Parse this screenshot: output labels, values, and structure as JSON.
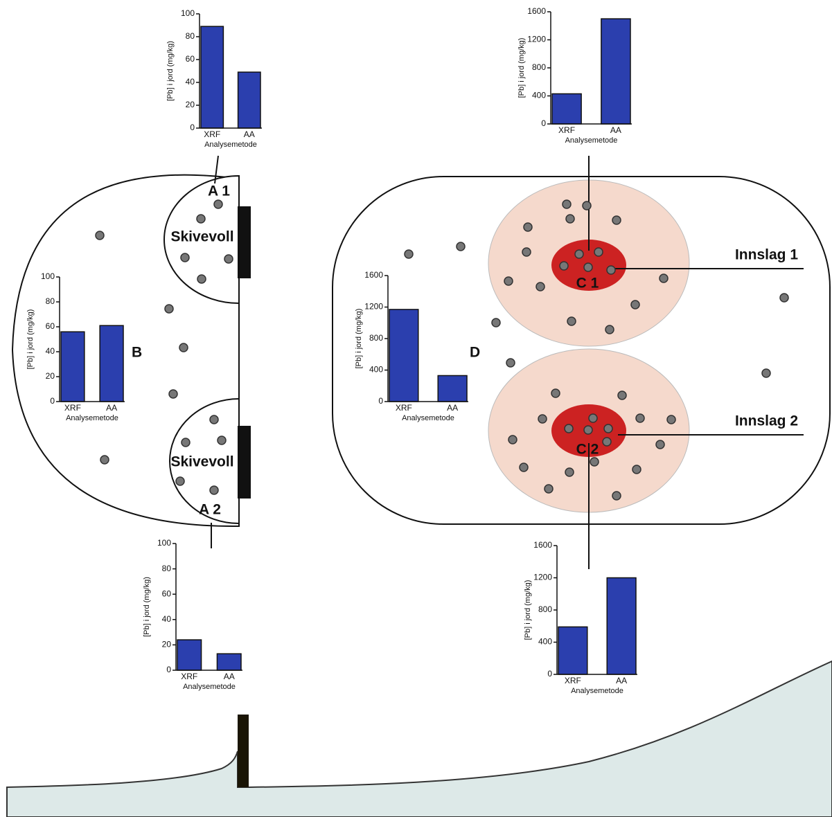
{
  "chart_data": [
    {
      "type": "bar",
      "categories": [
        "XRF",
        "AA"
      ],
      "values": [
        89,
        49
      ],
      "color": "#2b3fae",
      "ylim": [
        0,
        100
      ],
      "yticks": [
        0,
        20,
        40,
        60,
        80,
        100
      ],
      "ylabel": "[Pb] i jord (mg/kg)",
      "xlabel": "Analysemetode"
    },
    {
      "type": "bar",
      "categories": [
        "XRF",
        "AA"
      ],
      "values": [
        56,
        61
      ],
      "color": "#2b3fae",
      "ylim": [
        0,
        100
      ],
      "yticks": [
        0,
        20,
        40,
        60,
        80,
        100
      ],
      "ylabel": "[Pb] i jord (mg/kg)",
      "xlabel": "Analysemetode"
    },
    {
      "type": "bar",
      "categories": [
        "XRF",
        "AA"
      ],
      "values": [
        24,
        13
      ],
      "color": "#2b3fae",
      "ylim": [
        0,
        100
      ],
      "yticks": [
        0,
        20,
        40,
        60,
        80,
        100
      ],
      "ylabel": "[Pb] i jord (mg/kg)",
      "xlabel": "Analysemetode"
    },
    {
      "type": "bar",
      "categories": [
        "XRF",
        "AA"
      ],
      "values": [
        430,
        1500
      ],
      "color": "#2b3fae",
      "ylim": [
        0,
        1600
      ],
      "yticks": [
        0,
        400,
        800,
        1200,
        1600
      ],
      "ylabel": "[Pb] i jord (mg/kg)",
      "xlabel": "Analysemetode"
    },
    {
      "type": "bar",
      "categories": [
        "XRF",
        "AA"
      ],
      "values": [
        1170,
        330
      ],
      "color": "#2b3fae",
      "ylim": [
        0,
        1600
      ],
      "yticks": [
        0,
        400,
        800,
        1200,
        1600
      ],
      "ylabel": "[Pb] i jord (mg/kg)",
      "xlabel": "Analysemetode"
    },
    {
      "type": "bar",
      "categories": [
        "XRF",
        "AA"
      ],
      "values": [
        590,
        1200
      ],
      "color": "#2b3fae",
      "ylim": [
        0,
        1600
      ],
      "yticks": [
        0,
        400,
        800,
        1200,
        1600
      ],
      "ylabel": "[Pb] i jord (mg/kg)",
      "xlabel": "Analysemetode"
    }
  ],
  "labels": [
    "A 1",
    "Skivevoll",
    "B",
    "Skivevoll",
    "A 2",
    "C 1",
    "C 2",
    "D",
    "Innslag 1",
    "Innslag 2"
  ]
}
